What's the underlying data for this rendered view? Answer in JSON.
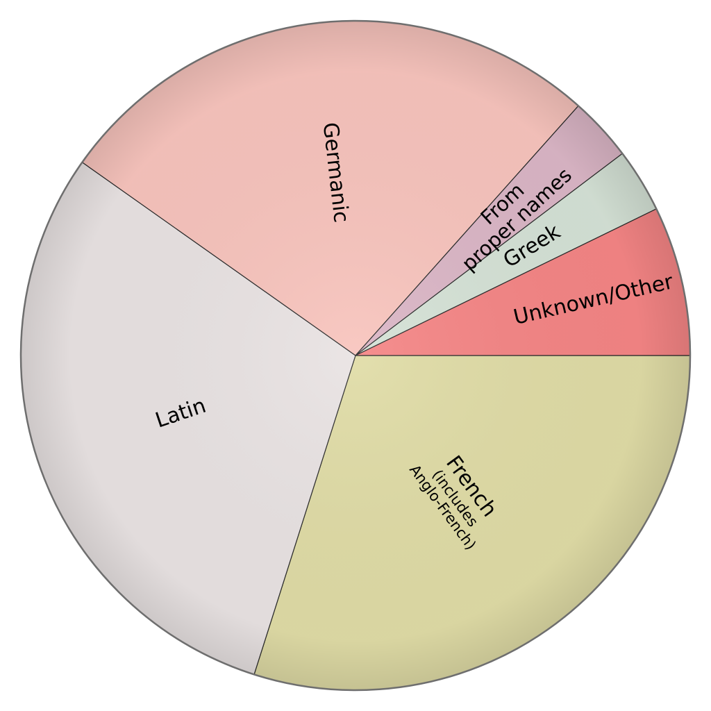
{
  "chart_data": {
    "type": "pie",
    "title": "",
    "legend": "none",
    "slices": [
      {
        "label": "French",
        "sublabel": [
          "(includes",
          "Anglo-French)"
        ],
        "value": 29,
        "color": "#e0dca6"
      },
      {
        "label": "Latin",
        "sublabel": [],
        "value": 29,
        "color": "#e9e3e3"
      },
      {
        "label": "Germanic",
        "sublabel": [],
        "value": 26,
        "color": "#f8c4bd"
      },
      {
        "label": "From proper names",
        "sublabel": [],
        "value": 3,
        "color": "#dbb6c6"
      },
      {
        "label": "Greek",
        "sublabel": [],
        "value": 3,
        "color": "#d5e2d6"
      },
      {
        "label": "Unknown/Other",
        "sublabel": [],
        "value": 7,
        "color": "#f58585"
      }
    ],
    "label_lines": {
      "French": [
        "French"
      ],
      "Latin": [
        "Latin"
      ],
      "Germanic": [
        "Germanic"
      ],
      "From proper names": [
        "From",
        "proper names"
      ],
      "Greek": [
        "Greek"
      ],
      "Unknown/Other": [
        "Unknown/Other"
      ]
    },
    "start_angle_deg": 0,
    "direction": "clockwise-from-east"
  }
}
